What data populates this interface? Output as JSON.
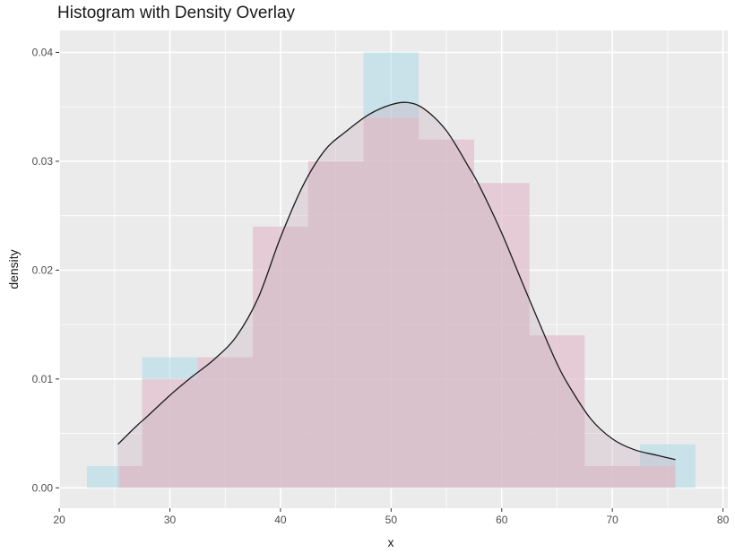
{
  "chart_data": {
    "type": "histogram",
    "title": "Histogram with Density Overlay",
    "xlabel": "x",
    "ylabel": "density",
    "xlim": [
      20,
      80
    ],
    "ylim": [
      0,
      0.04
    ],
    "x_ticks": [
      20,
      30,
      40,
      50,
      60,
      70,
      80
    ],
    "x_tick_labels": [
      "20",
      "30",
      "40",
      "50",
      "60",
      "70",
      "80"
    ],
    "y_ticks": [
      0,
      0.01,
      0.02,
      0.03,
      0.04
    ],
    "y_tick_labels": [
      "0.00",
      "0.01",
      "0.02",
      "0.03",
      "0.04"
    ],
    "grid": true,
    "legend": "none",
    "colors": {
      "panel_background": "#ebebeb",
      "grid": "#ffffff",
      "histogram_a_fill": "#add8e6",
      "histogram_b_fill": "#ffb6c1",
      "density_line": "#1a1a1a"
    },
    "series": [
      {
        "bins": [
          {
            "x0": 22.5,
            "x1": 27.5,
            "y": 0.002
          },
          {
            "x0": 27.5,
            "x1": 32.5,
            "y": 0.012
          },
          {
            "x0": 32.5,
            "x1": 37.5,
            "y": 0.012
          },
          {
            "x0": 37.5,
            "x1": 42.5,
            "y": 0.024
          },
          {
            "x0": 42.5,
            "x1": 47.5,
            "y": 0.03
          },
          {
            "x0": 47.5,
            "x1": 52.5,
            "y": 0.04
          },
          {
            "x0": 52.5,
            "x1": 57.5,
            "y": 0.032
          },
          {
            "x0": 57.5,
            "x1": 62.5,
            "y": 0.028
          },
          {
            "x0": 62.5,
            "x1": 67.5,
            "y": 0.014
          },
          {
            "x0": 67.5,
            "x1": 72.5,
            "y": 0.002
          },
          {
            "x0": 72.5,
            "x1": 77.5,
            "y": 0.004
          }
        ]
      },
      {
        "bins": [
          {
            "x0": 25.5,
            "x1": 27.5,
            "y": 0.002
          },
          {
            "x0": 27.5,
            "x1": 32.5,
            "y": 0.01
          },
          {
            "x0": 32.5,
            "x1": 37.5,
            "y": 0.012
          },
          {
            "x0": 37.5,
            "x1": 42.5,
            "y": 0.024
          },
          {
            "x0": 42.5,
            "x1": 47.5,
            "y": 0.03
          },
          {
            "x0": 47.5,
            "x1": 52.5,
            "y": 0.034
          },
          {
            "x0": 52.5,
            "x1": 57.5,
            "y": 0.032
          },
          {
            "x0": 57.5,
            "x1": 62.5,
            "y": 0.028
          },
          {
            "x0": 62.5,
            "x1": 67.5,
            "y": 0.014
          },
          {
            "x0": 67.5,
            "x1": 72.5,
            "y": 0.002
          },
          {
            "x0": 72.5,
            "x1": 75.7,
            "y": 0.002
          }
        ]
      }
    ],
    "density_curve": {
      "x": [
        25.3,
        27,
        28,
        30,
        32,
        34,
        36,
        38,
        40,
        42,
        44,
        46,
        48,
        50,
        51.5,
        53,
        55,
        57,
        58,
        60,
        62,
        64,
        65,
        66,
        68,
        70,
        72,
        74,
        75.7
      ],
      "y": [
        0.004,
        0.0057,
        0.0066,
        0.0085,
        0.0102,
        0.0118,
        0.0139,
        0.0175,
        0.023,
        0.0277,
        0.031,
        0.0328,
        0.0343,
        0.0352,
        0.0354,
        0.0348,
        0.0328,
        0.0295,
        0.0277,
        0.0234,
        0.0185,
        0.0137,
        0.0114,
        0.0095,
        0.0064,
        0.0045,
        0.0035,
        0.003,
        0.0026
      ]
    }
  }
}
